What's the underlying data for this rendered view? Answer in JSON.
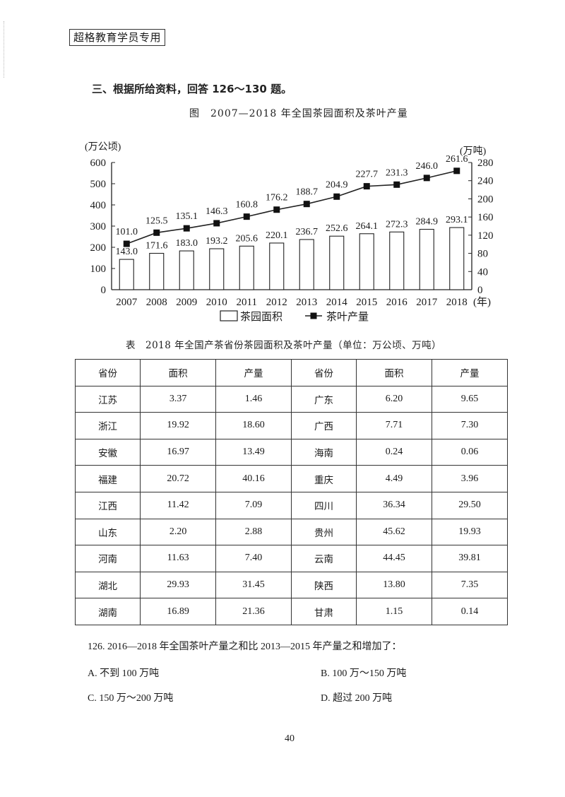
{
  "stamp": "超格教育学员专用",
  "section_title": "三、根据所给资料，回答 126～130 题。",
  "figure_title": "图　2007—2018 年全国茶园面积及茶叶产量",
  "chart_data": {
    "type": "bar+line",
    "title": "2007—2018 年全国茶园面积及茶叶产量",
    "categories": [
      "2007",
      "2008",
      "2009",
      "2010",
      "2011",
      "2012",
      "2013",
      "2014",
      "2015",
      "2016",
      "2017",
      "2018"
    ],
    "xlabel": "(年)",
    "y_left_label": "(万公顷)",
    "y_right_label": "(万吨)",
    "y_left_ticks": [
      "0",
      "100",
      "200",
      "300",
      "400",
      "500",
      "600"
    ],
    "y_right_ticks": [
      "0",
      "40",
      "80",
      "120",
      "160",
      "200",
      "240",
      "280"
    ],
    "ylim_left": [
      0,
      600
    ],
    "ylim_right": [
      0,
      280
    ],
    "series": [
      {
        "name": "茶园面积",
        "type": "bar",
        "axis": "left",
        "values": [
          143.0,
          171.6,
          183.0,
          193.2,
          205.6,
          220.1,
          236.7,
          252.6,
          264.1,
          272.3,
          284.9,
          293.1
        ],
        "labels": [
          "143.0",
          "171.6",
          "183.0",
          "193.2",
          "205.6",
          "220.1",
          "236.7",
          "252.6",
          "264.1",
          "272.3",
          "284.9",
          "293.1"
        ]
      },
      {
        "name": "茶叶产量",
        "type": "line",
        "axis": "right",
        "values": [
          101.0,
          125.5,
          135.1,
          146.3,
          160.8,
          176.2,
          188.7,
          204.9,
          227.7,
          231.3,
          246.0,
          261.6
        ],
        "labels": [
          "101.0",
          "125.5",
          "135.1",
          "146.3",
          "160.8",
          "176.2",
          "188.7",
          "204.9",
          "227.7",
          "231.3",
          "246.0",
          "261.6"
        ]
      }
    ],
    "legend": [
      "茶园面积",
      "茶叶产量"
    ],
    "legend_position": "bottom",
    "grid": false
  },
  "table": {
    "title": "表　2018 年全国产茶省份茶园面积及茶叶产量（单位：万公顷、万吨）",
    "headers": [
      "省份",
      "面积",
      "产量",
      "省份",
      "面积",
      "产量"
    ],
    "rows": [
      [
        "江苏",
        "3.37",
        "1.46",
        "广东",
        "6.20",
        "9.65"
      ],
      [
        "浙江",
        "19.92",
        "18.60",
        "广西",
        "7.71",
        "7.30"
      ],
      [
        "安徽",
        "16.97",
        "13.49",
        "海南",
        "0.24",
        "0.06"
      ],
      [
        "福建",
        "20.72",
        "40.16",
        "重庆",
        "4.49",
        "3.96"
      ],
      [
        "江西",
        "11.42",
        "7.09",
        "四川",
        "36.34",
        "29.50"
      ],
      [
        "山东",
        "2.20",
        "2.88",
        "贵州",
        "45.62",
        "19.93"
      ],
      [
        "河南",
        "11.63",
        "7.40",
        "云南",
        "44.45",
        "39.81"
      ],
      [
        "湖北",
        "29.93",
        "31.45",
        "陕西",
        "13.80",
        "7.35"
      ],
      [
        "湖南",
        "16.89",
        "21.36",
        "甘肃",
        "1.15",
        "0.14"
      ]
    ]
  },
  "question": {
    "text": "126. 2016—2018 年全国茶叶产量之和比 2013—2015 年产量之和增加了：",
    "options": {
      "A": "A. 不到 100 万吨",
      "B": "B. 100 万～150 万吨",
      "C": "C. 150 万～200 万吨",
      "D": "D. 超过 200 万吨"
    }
  },
  "page_number": "40"
}
